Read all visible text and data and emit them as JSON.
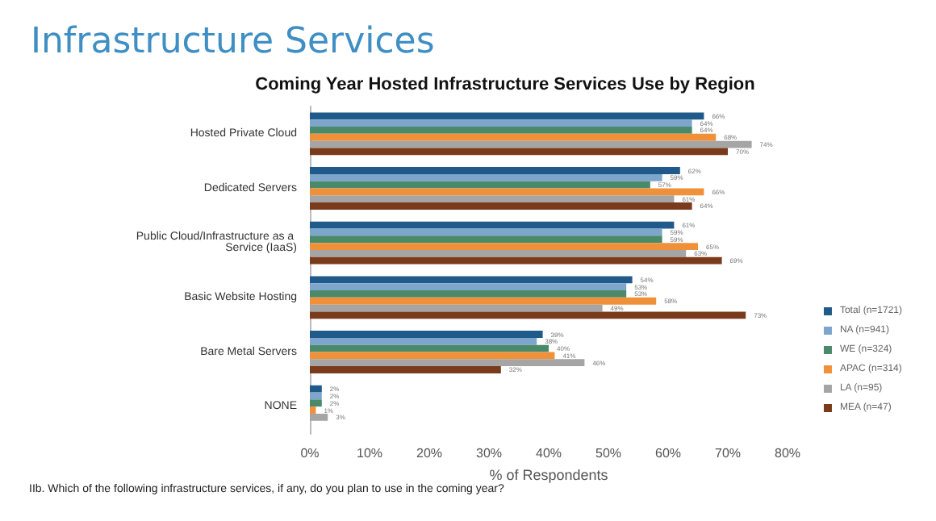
{
  "chart_data": {
    "type": "bar",
    "orientation": "horizontal",
    "title": "Infrastructure Services",
    "subtitle": "Coming Year Hosted Infrastructure Services Use by Region",
    "xlabel": "% of Respondents",
    "annotations": [
      "IIb. Which of the following infrastructure services, if any, do you plan to use in the coming year?"
    ],
    "categories": [
      "Hosted Private Cloud",
      "Dedicated Servers",
      "Public Cloud/Infrastructure as a Service (IaaS)",
      "Basic Website Hosting",
      "Bare Metal Servers",
      "NONE"
    ],
    "series": [
      {
        "name": "Total (n=1721)",
        "color": "#1f5a8a",
        "values": [
          66,
          62,
          61,
          54,
          39,
          2
        ],
        "value_labels": [
          "66%",
          "62%",
          "61%",
          "54%",
          "39%",
          "2%"
        ]
      },
      {
        "name": "NA (n=941)",
        "color": "#7ea6cc",
        "values": [
          64,
          59,
          59,
          53,
          38,
          2
        ],
        "value_labels": [
          "64%",
          "59%",
          "59%",
          "53%",
          "38%",
          "2%"
        ]
      },
      {
        "name": "WE (n=324)",
        "color": "#4a8a6a",
        "values": [
          64,
          57,
          59,
          53,
          40,
          2
        ],
        "value_labels": [
          "64%",
          "57%",
          "59%",
          "53%",
          "40%",
          "2%"
        ]
      },
      {
        "name": "APAC (n=314)",
        "color": "#f0913a",
        "values": [
          68,
          66,
          65,
          58,
          41,
          1
        ],
        "value_labels": [
          "68%",
          "66%",
          "65%",
          "58%",
          "41%",
          "1%"
        ]
      },
      {
        "name": "LA (n=95)",
        "color": "#a5a5a5",
        "values": [
          74,
          61,
          63,
          49,
          46,
          3
        ],
        "value_labels": [
          "74%",
          "61%",
          "63%",
          "49%",
          "46%",
          "3%"
        ]
      },
      {
        "name": "MEA (n=47)",
        "color": "#7a3b1c",
        "values": [
          70,
          64,
          69,
          73,
          32,
          0
        ],
        "value_labels": [
          "70%",
          "64%",
          "69%",
          "73%",
          "32%",
          null
        ]
      }
    ],
    "xlim": [
      0,
      80
    ],
    "xticks": [
      {
        "value": 0,
        "label": "0%"
      },
      {
        "value": 10,
        "label": "10%"
      },
      {
        "value": 20,
        "label": "20%"
      },
      {
        "value": 30,
        "label": "30%"
      },
      {
        "value": 40,
        "label": "40%"
      },
      {
        "value": 50,
        "label": "50%"
      },
      {
        "value": 60,
        "label": "60%"
      },
      {
        "value": 70,
        "label": "70%"
      },
      {
        "value": 80,
        "label": "80%"
      }
    ],
    "legend": "bottom right"
  }
}
